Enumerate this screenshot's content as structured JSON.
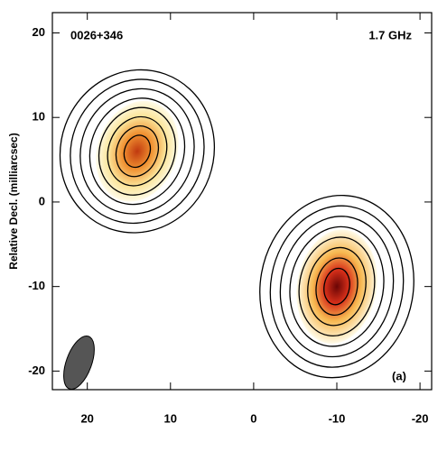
{
  "chart_data": {
    "type": "contour",
    "title": "0026+346",
    "annotation": "1.7 GHz",
    "panel_label": "(a)",
    "ylabel": "Relative Decl. (milliarcsec)",
    "xlim": [
      24.2,
      -21.4
    ],
    "ylim": [
      -22.2,
      22.4
    ],
    "xticks": [
      20,
      10,
      0,
      -10,
      -20
    ],
    "yticks": [
      -20,
      -10,
      0,
      10,
      20
    ],
    "peaks": [
      {
        "x": 14,
        "y": 6,
        "color": "#c0390f"
      },
      {
        "x": -10,
        "y": -10,
        "color": "#8a0a0a"
      }
    ],
    "beam": {
      "x": 21,
      "y": -19,
      "color": "#555555"
    }
  }
}
